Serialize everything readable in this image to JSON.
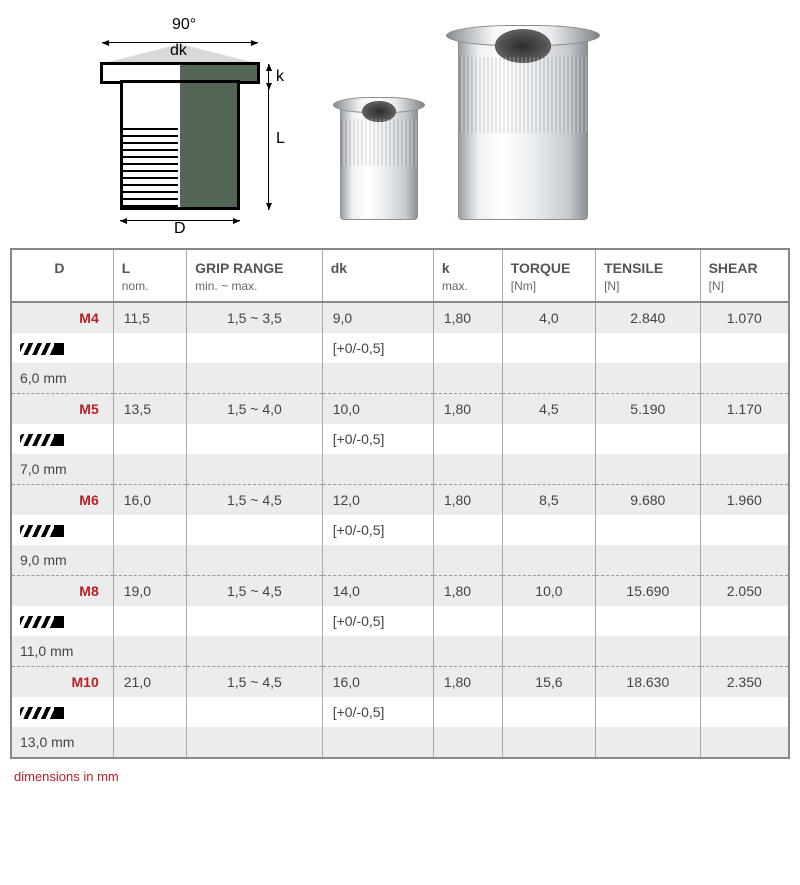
{
  "diagram": {
    "angle_label": "90°",
    "dk_label": "dk",
    "k_label": "k",
    "L_label": "L",
    "D_label": "D"
  },
  "table": {
    "headers": {
      "D": "D",
      "L": "L",
      "L_sub": "nom.",
      "grip": "GRIP RANGE",
      "grip_sub": "min.  ~  max.",
      "dk": "dk",
      "k": "k",
      "k_sub": "max.",
      "torque": "TORQUE",
      "torque_sub": "[Nm]",
      "tensile": "TENSILE",
      "tensile_sub": "[N]",
      "shear": "SHEAR",
      "shear_sub": "[N]"
    },
    "rows": [
      {
        "m": "M4",
        "drill": "6,0 mm",
        "L": "11,5",
        "grip": "1,5 ~ 3,5",
        "dk": "9,0",
        "dk_tol": "[+0/-0,5]",
        "k": "1,80",
        "torque": "4,0",
        "tensile": "2.840",
        "shear": "1.070"
      },
      {
        "m": "M5",
        "drill": "7,0 mm",
        "L": "13,5",
        "grip": "1,5 ~ 4,0",
        "dk": "10,0",
        "dk_tol": "[+0/-0,5]",
        "k": "1,80",
        "torque": "4,5",
        "tensile": "5.190",
        "shear": "1.170"
      },
      {
        "m": "M6",
        "drill": "9,0 mm",
        "L": "16,0",
        "grip": "1,5 ~ 4,5",
        "dk": "12,0",
        "dk_tol": "[+0/-0,5]",
        "k": "1,80",
        "torque": "8,5",
        "tensile": "9.680",
        "shear": "1.960"
      },
      {
        "m": "M8",
        "drill": "11,0 mm",
        "L": "19,0",
        "grip": "1,5 ~ 4,5",
        "dk": "14,0",
        "dk_tol": "[+0/-0,5]",
        "k": "1,80",
        "torque": "10,0",
        "tensile": "15.690",
        "shear": "2.050"
      },
      {
        "m": "M10",
        "drill": "13,0 mm",
        "L": "21,0",
        "grip": "1,5 ~ 4,5",
        "dk": "16,0",
        "dk_tol": "[+0/-0,5]",
        "k": "1,80",
        "torque": "15,6",
        "tensile": "18.630",
        "shear": "2.350"
      }
    ]
  },
  "footnote": "dimensions in mm",
  "colors": {
    "accent_red": "#b81f25",
    "stripe_grey": "#ececec",
    "border_grey": "#888888",
    "diagram_fill": "#536656"
  }
}
